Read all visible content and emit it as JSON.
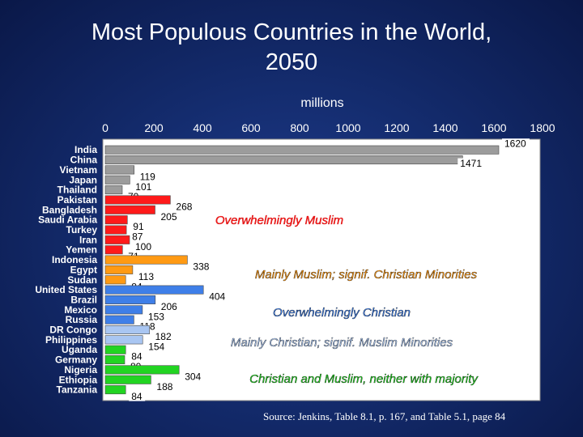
{
  "title_line1": "Most Populous Countries in the World,",
  "title_line2": "2050",
  "source": "Source: Jenkins, Table 8.1, p. 167, and Table 5.1, page 84",
  "colors": {
    "gray": "#9c9c9c",
    "red": "#ff1a1a",
    "orange": "#ff9a14",
    "blue": "#3f7fe8",
    "lightblue": "#a9c6f2",
    "green": "#22d422",
    "dark_red": "#c00000",
    "white": "#ffffff",
    "label_box": "#ffffff"
  },
  "chart_data": {
    "type": "bar",
    "orientation": "horizontal",
    "xlabel": "millions",
    "xlim": [
      0,
      1800
    ],
    "xticks": [
      "0",
      "200",
      "400",
      "600",
      "800",
      "1000",
      "1200",
      "1400",
      "1600",
      "1800"
    ],
    "categories": [
      "India",
      "China",
      "Vietnam",
      "Japan",
      "Thailand",
      "Pakistan",
      "Bangladesh",
      "Saudi Arabia",
      "Turkey",
      "Iran",
      "Yemen",
      "Indonesia",
      "Egypt",
      "Sudan",
      "United States",
      "Brazil",
      "Mexico",
      "Russia",
      "DR Congo",
      "Philippines",
      "Uganda",
      "Germany",
      "Nigeria",
      "Ethiopia",
      "Tanzania"
    ],
    "values": [
      1620,
      1471,
      119,
      101,
      70,
      268,
      205,
      91,
      87,
      100,
      71,
      338,
      113,
      84,
      404,
      206,
      153,
      118,
      182,
      154,
      84,
      80,
      304,
      188,
      84
    ],
    "value_labels": [
      "1620",
      "1471",
      "119",
      "101",
      "70",
      "268",
      "205",
      "91",
      "87",
      "100",
      "71",
      "338",
      "113",
      "84",
      "404",
      "206",
      "153",
      "118",
      "182",
      "154",
      "84",
      "80",
      "304",
      "188",
      "84"
    ],
    "groups": [
      "gray",
      "gray",
      "gray",
      "gray",
      "gray",
      "red",
      "red",
      "red",
      "red",
      "red",
      "red",
      "orange",
      "orange",
      "orange",
      "blue",
      "blue",
      "blue",
      "blue",
      "lightblue",
      "lightblue",
      "green",
      "green",
      "green",
      "green",
      "green"
    ],
    "annotations": {
      "red": "Overwhelmingly Muslim",
      "orange": "Mainly Muslim; signif. Christian Minorities",
      "blue": "Overwhelmingly Christian",
      "lightblue": "Mainly Christian; signif. Muslim Minorities",
      "green": "Christian and Muslim, neither with majority"
    }
  }
}
